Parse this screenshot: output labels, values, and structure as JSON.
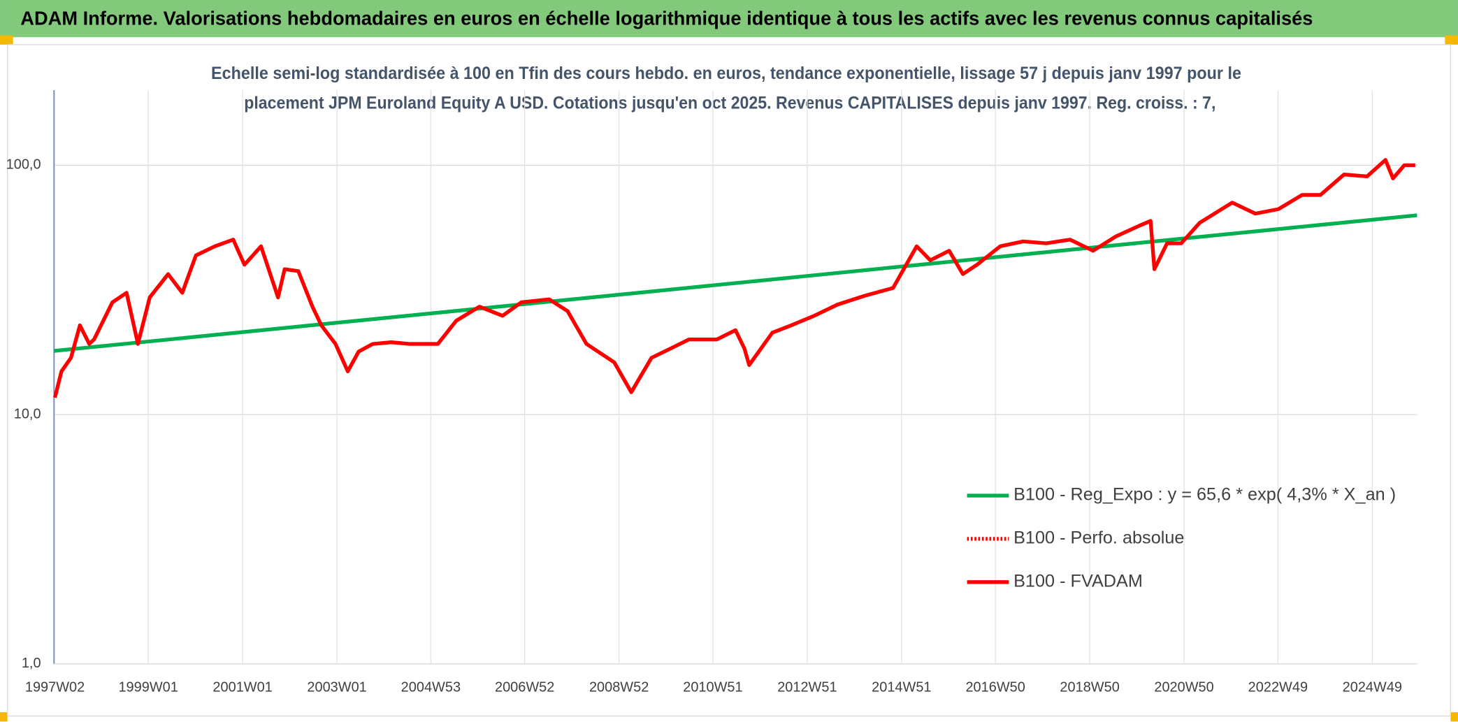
{
  "chart_data": {
    "type": "line",
    "header": "ADAM Informe. Valorisations hebdomadaires en euros en échelle logarithmique identique à tous les actifs avec les revenus connus capitalisés",
    "title": [
      "Echelle semi-log standardisée à 100 en Tfin des cours hebdo. en euros, tendance exponentielle, lissage 57 j depuis janv 1997 pour le",
      "placement JPM Euroland Equity A USD. Cotations jusqu'en oct 2025. Revenus CAPITALISES depuis janv 1997. Reg. croiss. : 7,"
    ],
    "log_y": true,
    "grid": true,
    "legend": "bottom-right",
    "xlim": [
      1997.0,
      2025.9
    ],
    "ylim": [
      1,
      200
    ],
    "yticks": [
      {
        "value": 1,
        "label": "1,0"
      },
      {
        "value": 10,
        "label": "10,0"
      },
      {
        "value": 100,
        "label": "100,0"
      }
    ],
    "xticks": [
      {
        "value": 1997.02,
        "label": "1997W02"
      },
      {
        "value": 1999.0,
        "label": "1999W01"
      },
      {
        "value": 2001.0,
        "label": "2001W01"
      },
      {
        "value": 2003.0,
        "label": "2003W01"
      },
      {
        "value": 2004.99,
        "label": "2004W53"
      },
      {
        "value": 2006.98,
        "label": "2006W52"
      },
      {
        "value": 2008.98,
        "label": "2008W52"
      },
      {
        "value": 2010.97,
        "label": "2010W51"
      },
      {
        "value": 2012.97,
        "label": "2012W51"
      },
      {
        "value": 2014.97,
        "label": "2014W51"
      },
      {
        "value": 2016.96,
        "label": "2016W50"
      },
      {
        "value": 2018.96,
        "label": "2018W50"
      },
      {
        "value": 2020.96,
        "label": "2020W50"
      },
      {
        "value": 2022.95,
        "label": "2022W49"
      },
      {
        "value": 2024.95,
        "label": "2024W49"
      }
    ],
    "series": [
      {
        "name": "B100 - Reg_Expo : y = 65,6 * exp( 4,3% *  X_an )",
        "color": "#00b050",
        "dash": "solid",
        "x": [
          1997.0,
          2025.9
        ],
        "values": [
          18,
          63
        ]
      },
      {
        "name": "B100 - Perfo. absolue",
        "color": "#ff0000",
        "dash": "dotted",
        "x": [],
        "values": []
      },
      {
        "name": "B100 - FVADAM",
        "color": "#ff0000",
        "dash": "solid",
        "x": [
          1997.02,
          1997.16,
          1997.36,
          1997.55,
          1997.75,
          1997.85,
          1998.24,
          1998.54,
          1998.78,
          1999.03,
          1999.42,
          1999.72,
          2000.01,
          2000.41,
          2000.8,
          2001.04,
          2001.39,
          2001.75,
          2001.89,
          2002.18,
          2002.48,
          2002.67,
          2002.97,
          2003.23,
          2003.46,
          2003.76,
          2004.15,
          2004.55,
          2005.14,
          2005.53,
          2006.02,
          2006.51,
          2006.91,
          2007.5,
          2007.89,
          2008.29,
          2008.88,
          2009.24,
          2009.67,
          2010.07,
          2010.46,
          2011.05,
          2011.45,
          2011.64,
          2011.74,
          2012.23,
          2012.63,
          2013.12,
          2013.61,
          2014.2,
          2014.79,
          2015.29,
          2015.58,
          2015.98,
          2016.27,
          2016.57,
          2017.06,
          2017.55,
          2018.04,
          2018.54,
          2019.03,
          2019.52,
          2020.01,
          2020.25,
          2020.33,
          2020.6,
          2020.9,
          2021.29,
          2021.98,
          2022.47,
          2022.96,
          2023.46,
          2023.85,
          2024.35,
          2024.84,
          2025.23,
          2025.39,
          2025.63,
          2025.86
        ],
        "values": [
          11.7,
          14.9,
          16.9,
          22.8,
          19.2,
          20.0,
          28.2,
          30.8,
          19.2,
          29.5,
          36.6,
          30.8,
          43.5,
          47.3,
          50.3,
          39.9,
          47.3,
          29.5,
          38.3,
          37.6,
          27.1,
          22.8,
          19.2,
          14.9,
          17.9,
          19.2,
          19.5,
          19.2,
          19.2,
          23.8,
          27.1,
          24.9,
          28.2,
          29.0,
          26.0,
          19.2,
          16.2,
          12.3,
          16.9,
          18.4,
          20.0,
          20.0,
          21.8,
          18.4,
          15.8,
          21.3,
          22.8,
          24.9,
          27.6,
          30.0,
          32.2,
          47.3,
          41.6,
          45.4,
          36.6,
          39.9,
          47.3,
          49.5,
          48.6,
          50.3,
          45.4,
          51.9,
          57.2,
          59.8,
          38.3,
          48.6,
          48.6,
          58.8,
          70.8,
          64.0,
          66.7,
          76.0,
          76.0,
          91.8,
          90.2,
          105,
          88.5,
          100,
          100
        ]
      }
    ]
  }
}
